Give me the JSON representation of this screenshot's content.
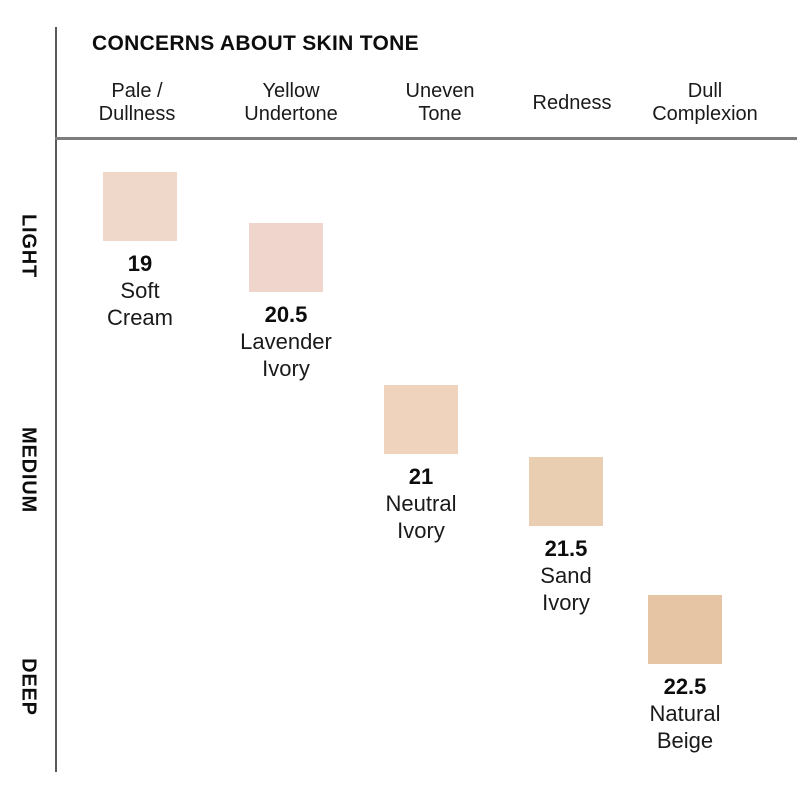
{
  "title": "CONCERNS ABOUT SKIN TONE",
  "columns": [
    {
      "label": "Pale /\nDullness"
    },
    {
      "label": "Yellow\nUndertone"
    },
    {
      "label": "Uneven\nTone"
    },
    {
      "label": "Redness"
    },
    {
      "label": "Dull\nComplexion"
    }
  ],
  "rows": [
    {
      "label": "LIGHT"
    },
    {
      "label": "MEDIUM"
    },
    {
      "label": "DEEP"
    }
  ],
  "shades": [
    {
      "number": "19",
      "name": "Soft\nCream",
      "color": "#efd8ca"
    },
    {
      "number": "20.5",
      "name": "Lavender\nIvory",
      "color": "#f0d5cd"
    },
    {
      "number": "21",
      "name": "Neutral\nIvory",
      "color": "#efd3bd"
    },
    {
      "number": "21.5",
      "name": "Sand\nIvory",
      "color": "#eaceb1"
    },
    {
      "number": "22.5",
      "name": "Natural\nBeige",
      "color": "#e5c5a3"
    }
  ],
  "chart_data": {
    "type": "scatter",
    "title": "CONCERNS ABOUT SKIN TONE",
    "x_categories": [
      "Pale / Dullness",
      "Yellow Undertone",
      "Uneven Tone",
      "Redness",
      "Dull Complexion"
    ],
    "y_categories": [
      "LIGHT",
      "MEDIUM",
      "DEEP"
    ],
    "legend": "none",
    "grid": false,
    "points": [
      {
        "shade": "19",
        "name": "Soft Cream",
        "x": "Pale / Dullness",
        "y": "LIGHT",
        "swatch_color": "#efd8ca"
      },
      {
        "shade": "20.5",
        "name": "Lavender Ivory",
        "x": "Yellow Undertone",
        "y": "LIGHT",
        "swatch_color": "#f0d5cd"
      },
      {
        "shade": "21",
        "name": "Neutral Ivory",
        "x": "Uneven Tone",
        "y": "MEDIUM",
        "swatch_color": "#efd3bd"
      },
      {
        "shade": "21.5",
        "name": "Sand Ivory",
        "x": "Redness",
        "y": "MEDIUM",
        "swatch_color": "#eaceb1"
      },
      {
        "shade": "22.5",
        "name": "Natural Beige",
        "x": "Dull Complexion",
        "y": "DEEP",
        "swatch_color": "#e5c5a3"
      }
    ]
  }
}
